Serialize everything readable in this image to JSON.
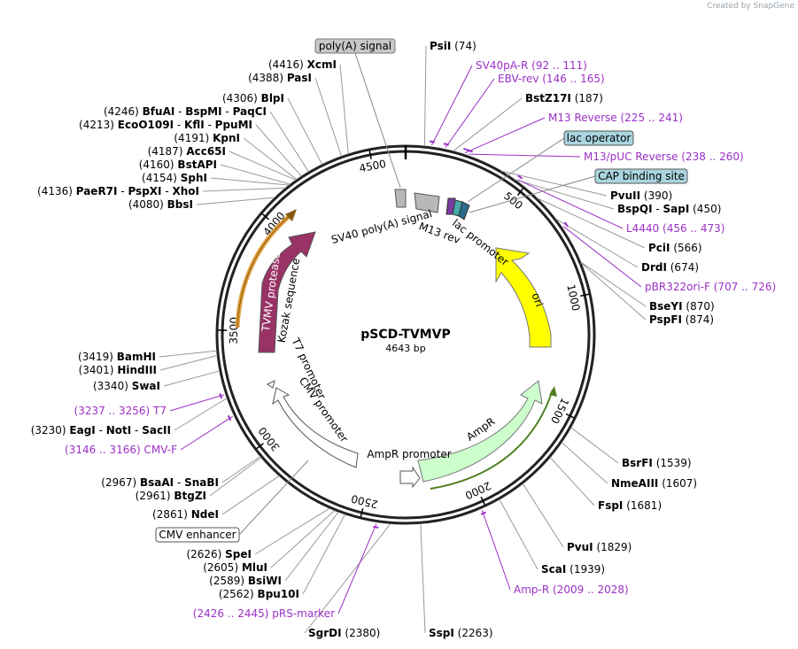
{
  "watermark": "Created by SnapGene",
  "plasmid": {
    "name": "pSCD-TVMVP",
    "size": "4643 bp",
    "length": 4643
  },
  "ticks": [
    "500",
    "1000",
    "1500",
    "2000",
    "2500",
    "3000",
    "3500",
    "4000",
    "4500"
  ],
  "features": [
    {
      "id": "sv40polya",
      "label": "SV40 poly(A) signal",
      "color": "#b8b8b8",
      "start": 4,
      "end": 125
    },
    {
      "id": "m13rev",
      "label": "M13 rev",
      "color": "#b8b8b8",
      "start": 225,
      "end": 241
    },
    {
      "id": "lacprom",
      "label": "lac promoter",
      "color": "#d9d9d9",
      "start": 265,
      "end": 295
    },
    {
      "id": "ori",
      "label": "ori",
      "color": "#ffff00",
      "start": 600,
      "end": 1188
    },
    {
      "id": "ampr",
      "label": "AmpR",
      "color": "#ccffcc",
      "start": 1359,
      "end": 2219
    },
    {
      "id": "amprprom",
      "label": "AmpR promoter",
      "color": "#ffffff",
      "start": 2220,
      "end": 2324
    },
    {
      "id": "cmvprom",
      "label": "CMV promoter",
      "color": "#ffffff",
      "start": 2876,
      "end": 3079
    },
    {
      "id": "t7prom",
      "label": "T7 promoter",
      "color": "#ffffff",
      "start": 3237,
      "end": 3256
    },
    {
      "id": "kozak",
      "label": "Kozak sequence",
      "color": "#ffffff",
      "start": 3424,
      "end": 3433
    },
    {
      "id": "tvmv",
      "label": "TVMV protease",
      "color": "#993366",
      "start": 3442,
      "end": 4078
    }
  ],
  "boxed_labels": [
    "poly(A) signal",
    "lac operator",
    "CAP binding site",
    "CMV enhancer"
  ],
  "sites": [
    {
      "name": "PsiI",
      "pos": "(74)"
    },
    {
      "name": "BstZ17I",
      "pos": "(187)"
    },
    {
      "name": "PvuII",
      "pos": "(390)"
    },
    {
      "name": "BspQI",
      "name2": "SapI",
      "pos": "(450)"
    },
    {
      "name": "PciI",
      "pos": "(566)"
    },
    {
      "name": "DrdI",
      "pos": "(674)"
    },
    {
      "name": "BseYI",
      "pos": "(870)"
    },
    {
      "name": "PspFI",
      "pos": "(874)"
    },
    {
      "name": "BsrFI",
      "pos": "(1539)"
    },
    {
      "name": "NmeAIII",
      "pos": "(1607)"
    },
    {
      "name": "FspI",
      "pos": "(1681)"
    },
    {
      "name": "PvuI",
      "pos": "(1829)"
    },
    {
      "name": "ScaI",
      "pos": "(1939)"
    },
    {
      "name": "SspI",
      "pos": "(2263)"
    },
    {
      "name": "SgrDI",
      "pos": "(2380)"
    },
    {
      "name": "Bpu10I",
      "pos": "(2562)"
    },
    {
      "name": "BsiWI",
      "pos": "(2589)"
    },
    {
      "name": "MluI",
      "pos": "(2605)"
    },
    {
      "name": "SpeI",
      "pos": "(2626)"
    },
    {
      "name": "NdeI",
      "pos": "(2861)"
    },
    {
      "name": "BtgZI",
      "pos": "(2961)"
    },
    {
      "name": "BsaAI",
      "name2": "SnaBI",
      "pos": "(2967)"
    },
    {
      "name": "EagI",
      "name2": "NotI",
      "name3": "SacII",
      "pos": "(3230)"
    },
    {
      "name": "SwaI",
      "pos": "(3340)"
    },
    {
      "name": "HindIII",
      "pos": "(3401)"
    },
    {
      "name": "BamHI",
      "pos": "(3419)"
    },
    {
      "name": "BbsI",
      "pos": "(4080)"
    },
    {
      "name": "PaeR7I",
      "name2": "PspXI",
      "name3": "XhoI",
      "pos": "(4136)"
    },
    {
      "name": "SphI",
      "pos": "(4154)"
    },
    {
      "name": "BstAPI",
      "pos": "(4160)"
    },
    {
      "name": "Acc65I",
      "pos": "(4187)"
    },
    {
      "name": "KpnI",
      "pos": "(4191)"
    },
    {
      "name": "EcoO109I",
      "name2": "KflI",
      "name3": "PpuMI",
      "pos": "(4213)"
    },
    {
      "name": "BfuAI",
      "name2": "BspMI",
      "name3": "PaqCI",
      "pos": "(4246)"
    },
    {
      "name": "BlpI",
      "pos": "(4306)"
    },
    {
      "name": "PasI",
      "pos": "(4388)"
    },
    {
      "name": "XcmI",
      "pos": "(4416)"
    }
  ],
  "primers": [
    {
      "name": "SV40pA-R",
      "range": "(92 .. 111)"
    },
    {
      "name": "EBV-rev",
      "range": "(146 .. 165)"
    },
    {
      "name": "M13 Reverse",
      "range": "(225 .. 241)"
    },
    {
      "name": "M13/pUC Reverse",
      "range": "(238 .. 260)"
    },
    {
      "name": "L4440",
      "range": "(456 .. 473)"
    },
    {
      "name": "pBR322ori-F",
      "range": "(707 .. 726)"
    },
    {
      "name": "Amp-R",
      "range": "(2009 .. 2028)"
    },
    {
      "name": "pRS-marker",
      "range": "(2426 .. 2445)"
    },
    {
      "name": "CMV-F",
      "range": "(3146 .. 3166)"
    },
    {
      "name": "T7",
      "range": "(3237 .. 3256)"
    }
  ]
}
